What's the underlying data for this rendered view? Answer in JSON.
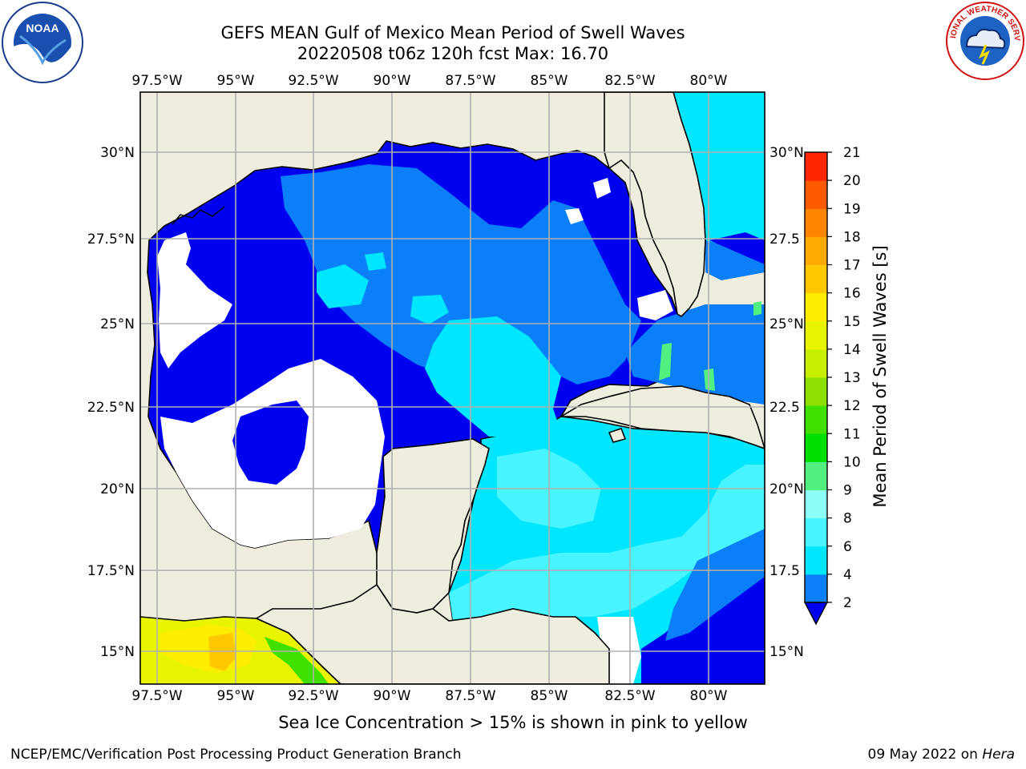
{
  "title_line1": "GEFS MEAN Gulf of Mexico Mean Period of Swell Waves",
  "title_line2": "20220508 t06z 120h fcst   Max: 16.70",
  "logos": {
    "left": "NOAA",
    "right": "NATIONAL WEATHER SERVICE"
  },
  "map": {
    "lon_labels": [
      "97.5°W",
      "95°W",
      "92.5°W",
      "90°W",
      "87.5°W",
      "85°W",
      "82.5°W",
      "80°W"
    ],
    "lat_labels_left": [
      "30°N",
      "27.5°N",
      "25°N",
      "22.5°N",
      "20°N",
      "17.5°N",
      "15°N"
    ],
    "lat_labels_right": [
      "30°N",
      "27.5",
      "25°N",
      "22.5",
      "20°N",
      "17.5",
      "15°N"
    ],
    "land_color": "#eeedde",
    "grid_color": "#b0b0b0"
  },
  "colorbar": {
    "label": "Mean Period of Swell Waves [s]",
    "ticks": [
      "2",
      "4",
      "6",
      "8",
      "9",
      "10",
      "11",
      "12",
      "13",
      "14",
      "15",
      "16",
      "17",
      "18",
      "19",
      "20",
      "21"
    ],
    "colors": [
      "#0a7ff7",
      "#00e6ff",
      "#48f4ff",
      "#8cfff7",
      "#52f080",
      "#00e000",
      "#40e000",
      "#8ee000",
      "#c8ef00",
      "#e8f400",
      "#ffee00",
      "#ffc800",
      "#ffaa00",
      "#ff8500",
      "#ff5a00",
      "#ff2600"
    ],
    "under_color": "#0000f0"
  },
  "footer_note": "Sea Ice Concentration > 15% is shown in pink to yellow",
  "credit_left": "NCEP/EMC/Verification Post Processing Product Generation Branch",
  "credit_right_date": "09 May 2022 on ",
  "credit_right_machine": "Hera"
}
